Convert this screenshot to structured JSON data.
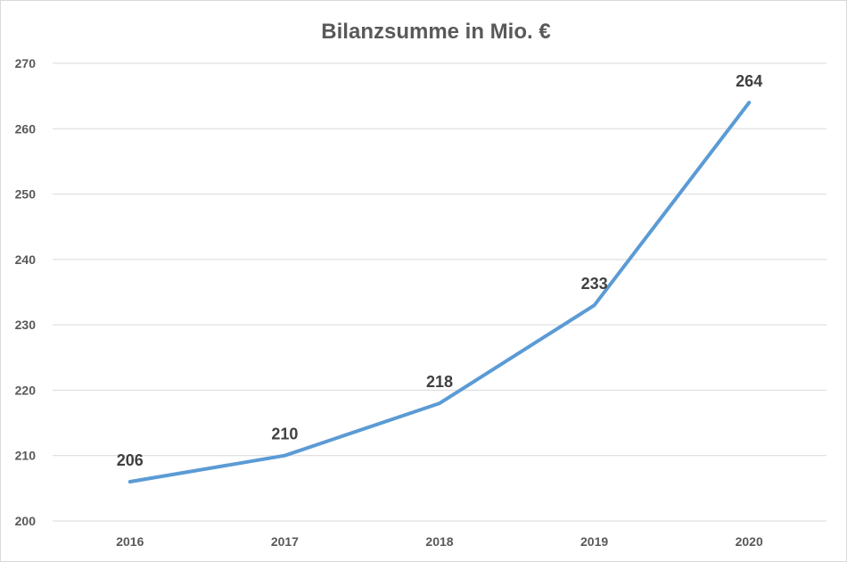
{
  "chart_data": {
    "type": "line",
    "title": "Bilanzsumme in Mio. €",
    "xlabel": "",
    "ylabel": "",
    "categories": [
      "2016",
      "2017",
      "2018",
      "2019",
      "2020"
    ],
    "series": [
      {
        "values": [
          206,
          210,
          218,
          233,
          264
        ],
        "color": "#5b9bd5"
      }
    ],
    "data_labels": [
      "206",
      "210",
      "218",
      "233",
      "264"
    ],
    "ylim": [
      200,
      270
    ],
    "y_ticks": [
      "200",
      "210",
      "220",
      "230",
      "240",
      "250",
      "260",
      "270"
    ],
    "grid": true,
    "legend": "none"
  }
}
